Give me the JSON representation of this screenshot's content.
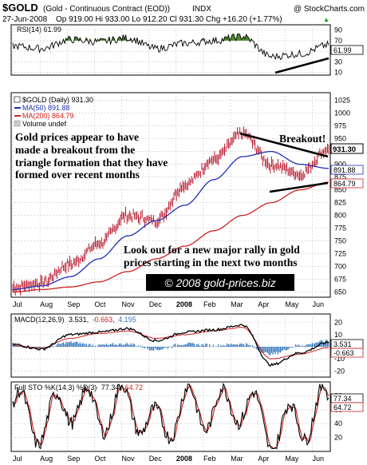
{
  "header": {
    "symbol": "$GOLD",
    "name": "(Gold - Continuous Contract (EOD))",
    "exchange": "INDX",
    "brand": "@ StockCharts.com",
    "date": "27-Jun-2008",
    "ohlc": "Op 919.00  Hi 933.00  Lo 912.20  Cl 931.30  Chg +16.20 (+1.77%)",
    "ohlc_marker": "▲"
  },
  "rsi": {
    "title": "RSI(14) 61.99",
    "ticks": [
      "90",
      "70",
      "50",
      "30",
      "10"
    ],
    "tick_values": [
      90,
      70,
      50,
      30,
      10
    ],
    "ylim": [
      5,
      100
    ],
    "last_label": "61.99",
    "line_color": "#000000",
    "fill_color": "#4a8a2a"
  },
  "price": {
    "legend": {
      "main": "$GOLD (Daily) 931.30",
      "ma50": "MA(50) 891.88",
      "ma200": "MA(200) 864.79",
      "volume": "Volume undef"
    },
    "ticks": [
      "1025",
      "1000",
      "975",
      "950",
      "925",
      "900",
      "875",
      "850",
      "825",
      "800",
      "775",
      "750",
      "725",
      "700",
      "675",
      "650"
    ],
    "tick_values": [
      1025,
      1000,
      975,
      950,
      925,
      900,
      875,
      850,
      825,
      800,
      775,
      750,
      725,
      700,
      675,
      650
    ],
    "ylim": [
      640,
      1040
    ],
    "last_price_label": "931.30",
    "ma50_label": "891.88",
    "ma200_label": "864.79",
    "ma50_color": "#1f2fb0",
    "ma200_color": "#d02020",
    "bar_color": "#b00018"
  },
  "annotations": {
    "breakout_left_1": "Gold prices appear to have",
    "breakout_left_2": "made a breakout from the",
    "breakout_left_3": "triangle formation that they have",
    "breakout_left_4": "formed over recent months",
    "breakout_right": "Breakout!",
    "rally_1": "Look out for a new major rally in gold",
    "rally_2": "prices starting in the next two months",
    "copyright": "© 2008 gold-prices.biz"
  },
  "xaxis": {
    "labels": [
      "Jul",
      "Aug",
      "Sep",
      "Oct",
      "Nov",
      "Dec",
      "2008",
      "Feb",
      "Mar",
      "Apr",
      "May",
      "Jun"
    ]
  },
  "macd": {
    "title_prefix": "MACD(12,26,9)",
    "value_macd": "3.531",
    "value_signal": "-0.663",
    "value_hist": "4.195",
    "ticks": [
      "20",
      "10",
      "0",
      "-10",
      "-20"
    ],
    "tick_values": [
      20,
      10,
      0,
      -10,
      -20
    ],
    "ylim": [
      -25,
      27
    ],
    "label_macd": "3.531",
    "label_signal": "-0.663",
    "signal_color": "#d02020",
    "hist_color": "#3a7ac0"
  },
  "sto": {
    "title_prefix": "Full STO %K(14,3) %D(3)",
    "value_k": "77.34",
    "value_d": "64.72",
    "ticks": [
      "80",
      "60",
      "40",
      "20"
    ],
    "tick_values": [
      80,
      60,
      40,
      20
    ],
    "ylim": [
      0,
      100
    ],
    "label_k": "77.34",
    "label_d": "64.72",
    "k_color": "#000000",
    "d_color": "#d02020"
  },
  "chart_data": {
    "type": "line",
    "title": "$GOLD (Gold - Continuous Contract (EOD)) INDX",
    "period": "Daily, Jul 2007 - 27-Jun-2008",
    "x": [
      "Jul",
      "Aug",
      "Sep",
      "Oct",
      "Nov",
      "Dec",
      "2008",
      "Feb",
      "Mar",
      "Apr",
      "May",
      "Jun"
    ],
    "ylim": [
      640,
      1040
    ],
    "series": [
      {
        "name": "$GOLD (Daily) 931.30",
        "values": [
          660,
          668,
          705,
          745,
          800,
          790,
          860,
          910,
          960,
          900,
          880,
          931
        ]
      },
      {
        "name": "MA(50) 891.88",
        "values": [
          655,
          662,
          680,
          715,
          760,
          790,
          820,
          870,
          915,
          925,
          900,
          892
        ]
      },
      {
        "name": "MA(200) 864.79",
        "values": [
          650,
          655,
          660,
          670,
          690,
          715,
          740,
          770,
          800,
          825,
          850,
          865
        ]
      }
    ],
    "rsi": {
      "name": "RSI(14) 61.99",
      "ylim": [
        5,
        100
      ],
      "values": [
        60,
        55,
        72,
        68,
        75,
        55,
        65,
        70,
        78,
        40,
        45,
        62
      ]
    },
    "macd": {
      "name": "MACD(12,26,9)",
      "ylim": [
        -25,
        27
      ],
      "macd": [
        2,
        -2,
        10,
        12,
        15,
        5,
        12,
        14,
        18,
        -15,
        -5,
        3.531
      ],
      "signal": [
        1,
        -1,
        7,
        11,
        13,
        7,
        10,
        13,
        16,
        -10,
        -6,
        -0.663
      ],
      "hist": [
        1,
        -1,
        3,
        1,
        2,
        -2,
        2,
        1,
        2,
        -5,
        1,
        4.195
      ]
    },
    "sto": {
      "name": "Full STO %K(14,3) %D(3)",
      "ylim": [
        0,
        100
      ],
      "k": [
        70,
        30,
        85,
        60,
        80,
        20,
        75,
        65,
        85,
        15,
        40,
        77.34
      ],
      "d": [
        65,
        35,
        80,
        65,
        75,
        25,
        70,
        68,
        80,
        20,
        35,
        64.72
      ]
    }
  }
}
